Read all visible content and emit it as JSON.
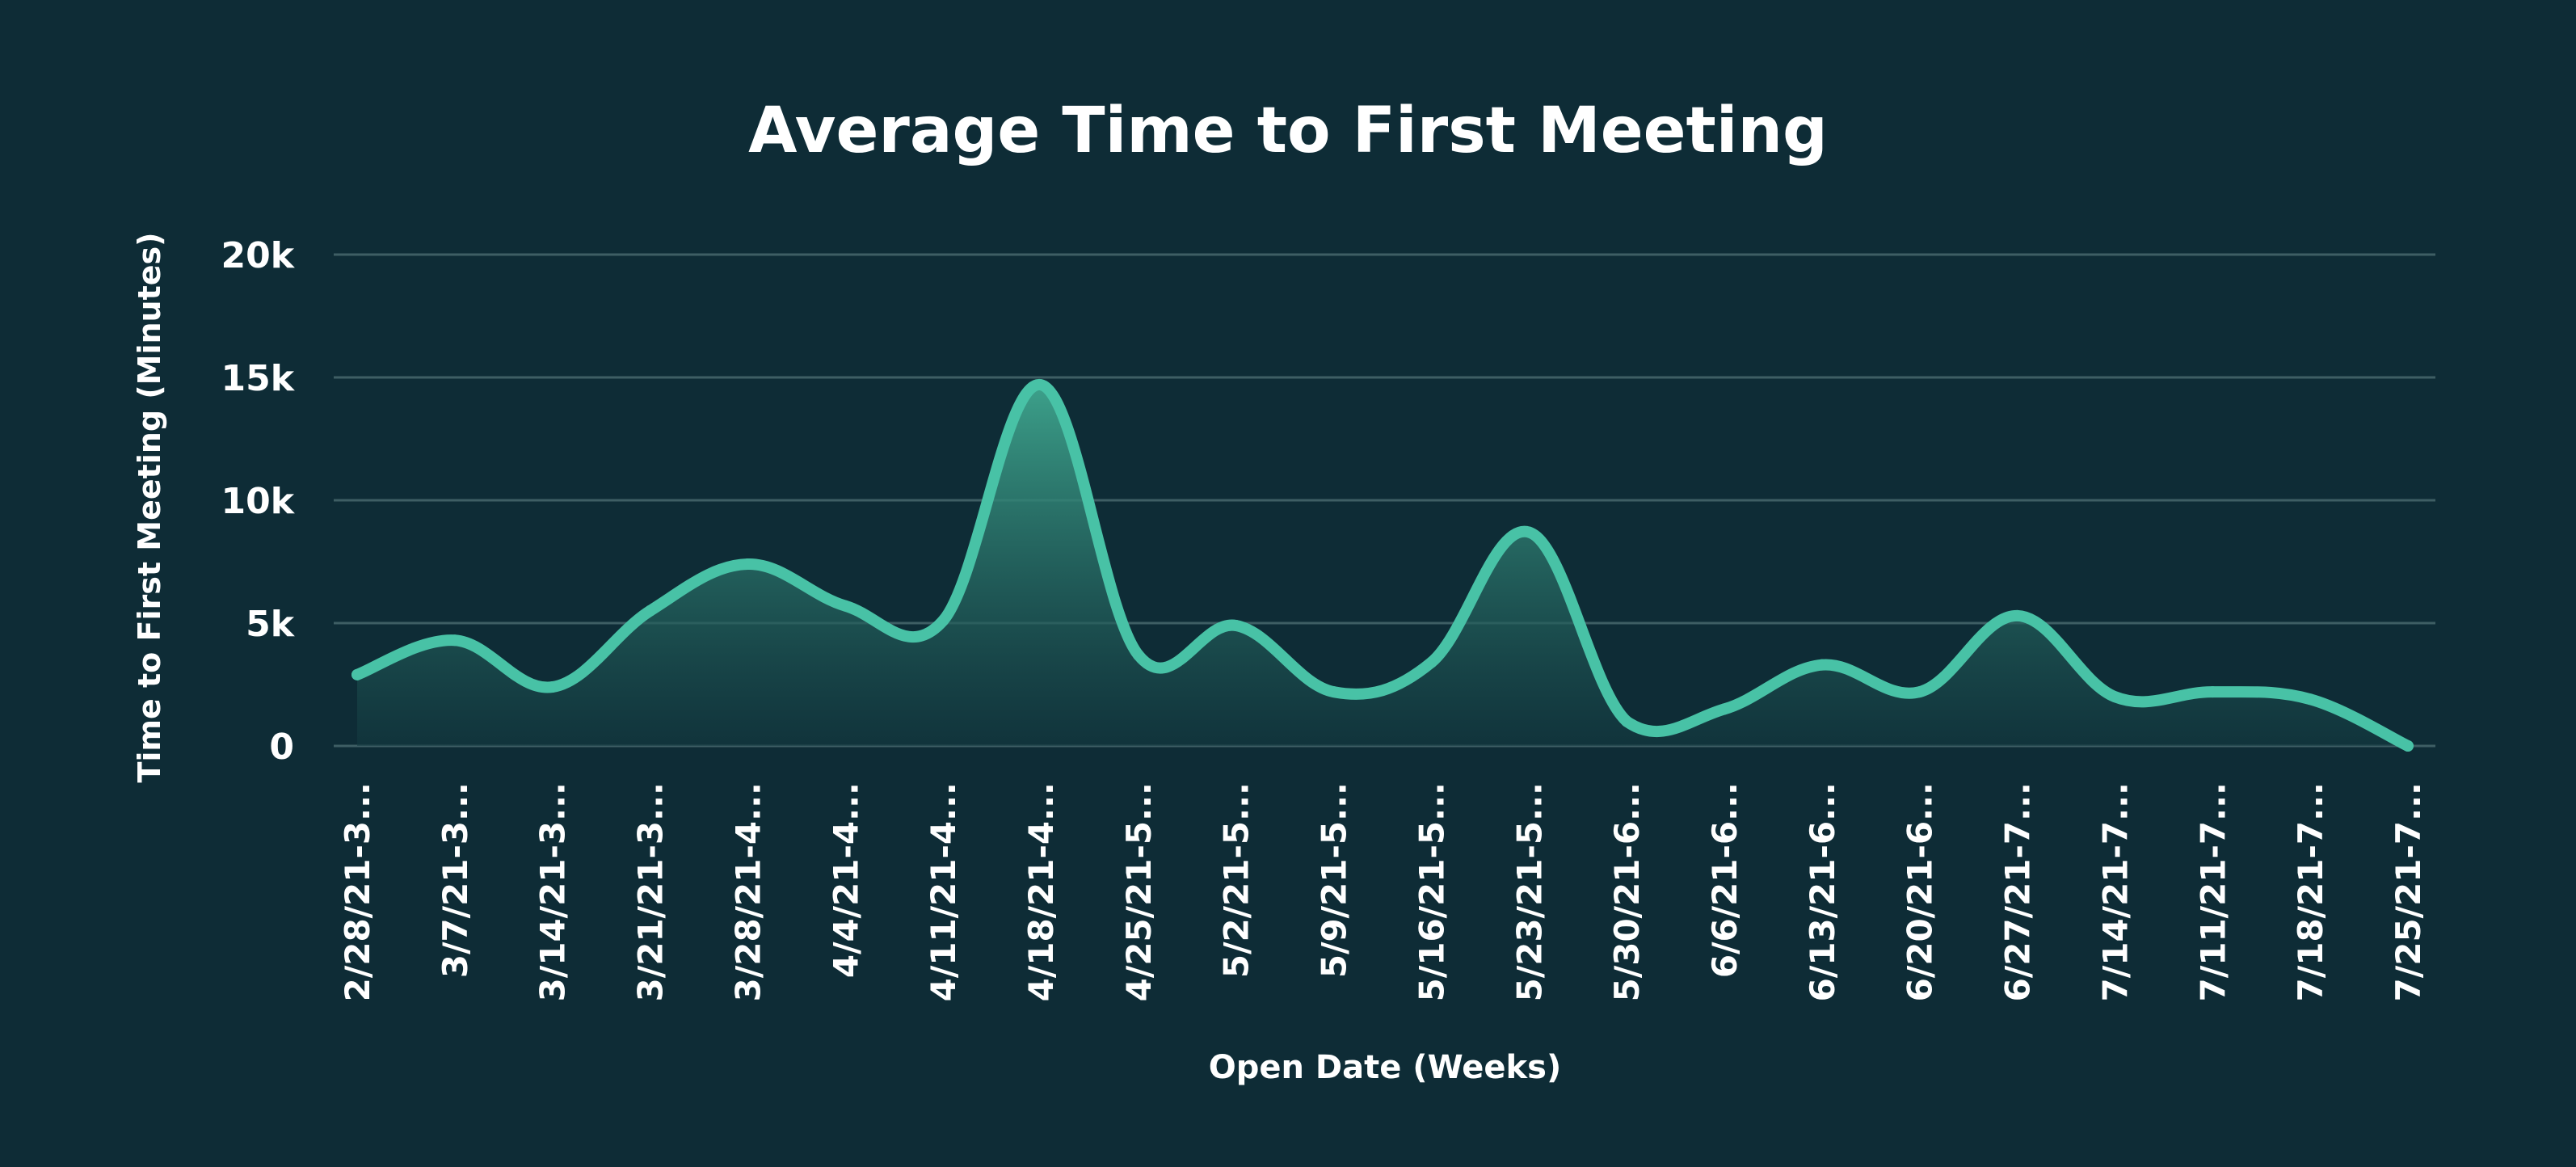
{
  "chart_data": {
    "type": "area",
    "title": "Average Time to First Meeting",
    "xlabel": "Open Date (Weeks)",
    "ylabel": "Time to First Meeting (Minutes)",
    "ylim": [
      0,
      20000
    ],
    "yticks": [
      0,
      5000,
      10000,
      15000,
      20000
    ],
    "ytick_labels": [
      "0",
      "5k",
      "10k",
      "15k",
      "20k"
    ],
    "grid": true,
    "legend": "none",
    "categories": [
      "2/28/21-3...",
      "3/7/21-3...",
      "3/14/21-3...",
      "3/21/21-3...",
      "3/28/21-4...",
      "4/4/21-4...",
      "4/11/21-4...",
      "4/18/21-4...",
      "4/25/21-5...",
      "5/2/21-5...",
      "5/9/21-5...",
      "5/16/21-5...",
      "5/23/21-5...",
      "5/30/21-6...",
      "6/6/21-6...",
      "6/13/21-6...",
      "6/20/21-6...",
      "6/27/21-7...",
      "7/14/21-7...",
      "7/11/21-7...",
      "7/18/21-7...",
      "7/25/21-7..."
    ],
    "series": [
      {
        "values": [
          2900,
          4300,
          2400,
          5500,
          7400,
          5700,
          5100,
          14700,
          3700,
          4900,
          2200,
          3400,
          8700,
          1000,
          1500,
          3300,
          2200,
          5300,
          2000,
          2200,
          1900,
          0
        ]
      }
    ]
  },
  "colors": {
    "background": "#0e2c36",
    "line": "#48c2a6",
    "fill_top": "#3fa78f",
    "fill_bottom": "#133a40",
    "grid": "#3e5e64",
    "text": "#ffffff"
  }
}
